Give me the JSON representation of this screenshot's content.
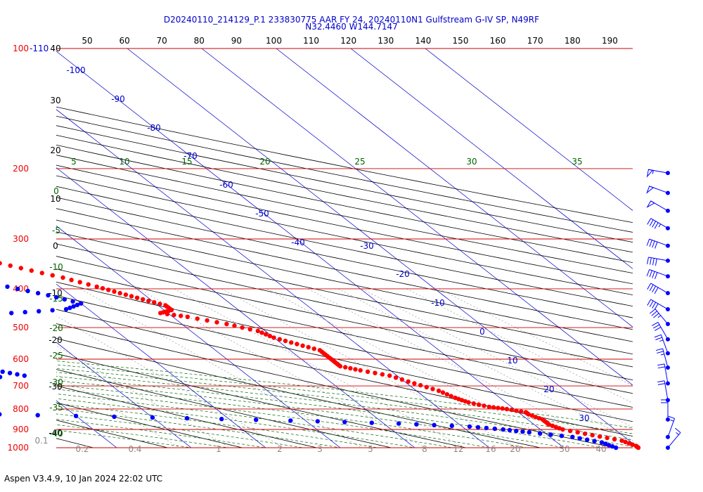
{
  "header": {
    "line1": "D20240110_214129_P.1 233830775 AAR FY 24, 20240110N1 Gulfstream G-IV SP, N49RF",
    "line2": "N32.4460 W144.7147"
  },
  "footer": {
    "text": "Aspen V3.4.9, 10 Jan 2024  22:02 UTC"
  },
  "colors": {
    "temperature": "#ff0000",
    "dewpoint": "#0000ff",
    "pressure_line": "#cc0000",
    "isotherm": "#0000cc",
    "dry_adiabat": "#000000",
    "moist_adiabat": "#006600",
    "mixing_ratio": "#888888",
    "wind": "#0000ff"
  },
  "chart_data": {
    "type": "skew-t",
    "title": "",
    "pressure_levels": [
      100,
      200,
      300,
      400,
      500,
      600,
      700,
      800,
      900,
      1000
    ],
    "pressure_labels": [
      "100",
      "200",
      "300",
      "400",
      "500",
      "600",
      "700",
      "800",
      "900",
      "1000"
    ],
    "pressure_label_extra": "-110",
    "top_ticks": [
      "50",
      "60",
      "70",
      "80",
      "90",
      "100",
      "110",
      "120",
      "130",
      "140",
      "150",
      "160",
      "170",
      "180",
      "190"
    ],
    "left_dry_labels": [
      "40",
      "30",
      "20",
      "10",
      "0",
      "-10",
      "-20",
      "-30",
      "-40"
    ],
    "isotherm_labels": [
      "-100",
      "-90",
      "-80",
      "-70",
      "-60",
      "-50",
      "-40",
      "-30",
      "-20",
      "-10",
      "0",
      "10",
      "20",
      "30"
    ],
    "moist_labels_top": [
      "5",
      "10",
      "15",
      "20",
      "25",
      "30",
      "35"
    ],
    "moist_labels_left": [
      "0",
      "-5",
      "-10",
      "-15",
      "-20",
      "-25",
      "-30",
      "-35",
      "-40"
    ],
    "mixing_labels": [
      "0.1",
      "0.2",
      "0.4",
      "1",
      "2",
      "3",
      "5",
      "8",
      "12",
      "16",
      "20",
      "30",
      "40"
    ],
    "temperature": [
      {
        "p": 211,
        "t": -47
      },
      {
        "p": 218,
        "t": -50
      },
      {
        "p": 222,
        "t": -54
      },
      {
        "p": 229,
        "t": -58
      },
      {
        "p": 232,
        "t": -61
      },
      {
        "p": 240,
        "t": -59
      },
      {
        "p": 255,
        "t": -55
      },
      {
        "p": 270,
        "t": -51
      },
      {
        "p": 290,
        "t": -46
      },
      {
        "p": 312,
        "t": -41
      },
      {
        "p": 335,
        "t": -36
      },
      {
        "p": 355,
        "t": -32
      },
      {
        "p": 375,
        "t": -28
      },
      {
        "p": 395,
        "t": -25
      },
      {
        "p": 410,
        "t": -23
      },
      {
        "p": 425,
        "t": -21
      },
      {
        "p": 440,
        "t": -19
      },
      {
        "p": 452,
        "t": -19
      },
      {
        "p": 460,
        "t": -21
      },
      {
        "p": 470,
        "t": -18
      },
      {
        "p": 490,
        "t": -14
      },
      {
        "p": 510,
        "t": -11
      },
      {
        "p": 530,
        "t": -10
      },
      {
        "p": 550,
        "t": -8
      },
      {
        "p": 570,
        "t": -6
      },
      {
        "p": 590,
        "t": -6
      },
      {
        "p": 610,
        "t": -6
      },
      {
        "p": 625,
        "t": -6
      },
      {
        "p": 640,
        "t": -4
      },
      {
        "p": 660,
        "t": -1
      },
      {
        "p": 690,
        "t": 1
      },
      {
        "p": 720,
        "t": 3
      },
      {
        "p": 750,
        "t": 4
      },
      {
        "p": 770,
        "t": 5
      },
      {
        "p": 790,
        "t": 7
      },
      {
        "p": 800,
        "t": 9
      },
      {
        "p": 815,
        "t": 11
      },
      {
        "p": 825,
        "t": 11
      },
      {
        "p": 850,
        "t": 12
      },
      {
        "p": 875,
        "t": 12
      },
      {
        "p": 900,
        "t": 13
      },
      {
        "p": 930,
        "t": 16
      },
      {
        "p": 960,
        "t": 19
      },
      {
        "p": 990,
        "t": 20
      },
      {
        "p": 1000,
        "t": 20
      }
    ],
    "dewpoint": [
      {
        "p": 235,
        "td": -84
      },
      {
        "p": 242,
        "td": -76
      },
      {
        "p": 255,
        "td": -68
      },
      {
        "p": 265,
        "td": -63
      },
      {
        "p": 278,
        "td": -60
      },
      {
        "p": 300,
        "td": -60
      },
      {
        "p": 320,
        "td": -56
      },
      {
        "p": 340,
        "td": -49
      },
      {
        "p": 355,
        "td": -45
      },
      {
        "p": 375,
        "td": -42
      },
      {
        "p": 395,
        "td": -37
      },
      {
        "p": 415,
        "td": -33
      },
      {
        "p": 435,
        "td": -30
      },
      {
        "p": 450,
        "t": 0,
        "td": -33
      },
      {
        "p": 460,
        "td": -41
      },
      {
        "p": 475,
        "td": -52
      },
      {
        "p": 490,
        "td": -48
      },
      {
        "p": 500,
        "td": -59
      },
      {
        "p": 510,
        "td": -90
      },
      {
        "p": 520,
        "td": -72
      },
      {
        "p": 535,
        "td": -61
      },
      {
        "p": 550,
        "td": -63
      },
      {
        "p": 565,
        "td": -57
      },
      {
        "p": 580,
        "td": -62
      },
      {
        "p": 600,
        "td": -59
      },
      {
        "p": 620,
        "td": -54
      },
      {
        "p": 640,
        "td": -53
      },
      {
        "p": 660,
        "td": -50
      },
      {
        "p": 680,
        "td": -64
      },
      {
        "p": 700,
        "td": -80
      },
      {
        "p": 720,
        "td": -93
      },
      {
        "p": 745,
        "td": -98
      },
      {
        "p": 770,
        "td": -95
      },
      {
        "p": 790,
        "td": -92
      },
      {
        "p": 810,
        "td": -90
      },
      {
        "p": 825,
        "td": -60
      },
      {
        "p": 840,
        "td": -40
      },
      {
        "p": 855,
        "td": -22
      },
      {
        "p": 870,
        "td": -8
      },
      {
        "p": 885,
        "td": 1
      },
      {
        "p": 900,
        "td": 5
      },
      {
        "p": 915,
        "td": 8
      },
      {
        "p": 940,
        "td": 13
      },
      {
        "p": 970,
        "td": 16
      },
      {
        "p": 1000,
        "td": 17
      }
    ],
    "winds": [
      {
        "p": 205,
        "spd": 55,
        "dir": 280
      },
      {
        "p": 230,
        "spd": 50,
        "dir": 290
      },
      {
        "p": 255,
        "spd": 50,
        "dir": 300
      },
      {
        "p": 282,
        "spd": 45,
        "dir": 300
      },
      {
        "p": 312,
        "spd": 40,
        "dir": 290
      },
      {
        "p": 340,
        "spd": 40,
        "dir": 280
      },
      {
        "p": 372,
        "spd": 40,
        "dir": 290
      },
      {
        "p": 410,
        "spd": 40,
        "dir": 300
      },
      {
        "p": 450,
        "spd": 40,
        "dir": 300
      },
      {
        "p": 490,
        "spd": 35,
        "dir": 320
      },
      {
        "p": 535,
        "spd": 30,
        "dir": 330
      },
      {
        "p": 580,
        "spd": 25,
        "dir": 340
      },
      {
        "p": 630,
        "spd": 25,
        "dir": 345
      },
      {
        "p": 690,
        "spd": 20,
        "dir": 350
      },
      {
        "p": 760,
        "spd": 20,
        "dir": 350
      },
      {
        "p": 850,
        "spd": 20,
        "dir": 0
      },
      {
        "p": 940,
        "spd": 15,
        "dir": 20
      },
      {
        "p": 1000,
        "spd": 15,
        "dir": 40
      }
    ]
  }
}
